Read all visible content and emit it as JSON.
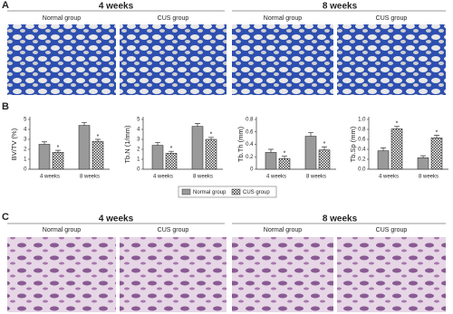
{
  "panels": [
    "A",
    "B",
    "C"
  ],
  "panel_a": {
    "periods": [
      "4 weeks",
      "8 weeks"
    ],
    "groups": [
      "Normal group",
      "CUS group",
      "Normal group",
      "CUS group"
    ]
  },
  "panel_c": {
    "periods": [
      "4 weeks",
      "8 weeks"
    ],
    "groups": [
      "Normal group",
      "CUS group",
      "Normal group",
      "CUS group"
    ]
  },
  "chart_data": [
    {
      "type": "bar",
      "ylabel": "BV/TV (%)",
      "categories": [
        "4 weeks",
        "8 weeks"
      ],
      "ylim": [
        0,
        5
      ],
      "yticks": [
        0,
        1,
        2,
        3,
        4,
        5
      ],
      "series": [
        {
          "name": "Normal group",
          "color": "#9a9a9a",
          "values": [
            2.5,
            4.4
          ],
          "errors": [
            0.25,
            0.3
          ]
        },
        {
          "name": "CUS group",
          "color": "#555555",
          "values": [
            1.7,
            2.8
          ],
          "errors": [
            0.2,
            0.2
          ],
          "annotations": [
            "*",
            "*"
          ]
        }
      ]
    },
    {
      "type": "bar",
      "ylabel": "Tb.N (1/mm)",
      "categories": [
        "4 weeks",
        "8 weeks"
      ],
      "ylim": [
        0,
        5
      ],
      "yticks": [
        0,
        1,
        2,
        3,
        4,
        5
      ],
      "series": [
        {
          "color": "#9a9a9a",
          "values": [
            2.4,
            4.3
          ],
          "errors": [
            0.3,
            0.3
          ]
        },
        {
          "color": "#555555",
          "values": [
            1.6,
            3.0
          ],
          "errors": [
            0.2,
            0.2
          ],
          "annotations": [
            "*",
            "*"
          ]
        }
      ]
    },
    {
      "type": "bar",
      "ylabel": "Tb.Th (mm)",
      "categories": [
        "4 weeks",
        "8 weeks"
      ],
      "ylim": [
        0,
        0.8
      ],
      "yticks": [
        0,
        0.2,
        0.4,
        0.6,
        0.8
      ],
      "series": [
        {
          "color": "#9a9a9a",
          "values": [
            0.27,
            0.53
          ],
          "errors": [
            0.05,
            0.06
          ]
        },
        {
          "color": "#555555",
          "values": [
            0.17,
            0.31
          ],
          "errors": [
            0.04,
            0.05
          ],
          "annotations": [
            "*",
            "*"
          ]
        }
      ]
    },
    {
      "type": "bar",
      "ylabel": "Tb.Sp (mm)",
      "categories": [
        "4 weeks",
        "8 weeks"
      ],
      "ylim": [
        0,
        1
      ],
      "yticks": [
        {
          "value": 0,
          "label": "0.0"
        },
        0.2,
        0.4,
        0.6,
        0.8,
        {
          "value": 1,
          "label": "1.0"
        }
      ],
      "series": [
        {
          "color": "#9a9a9a",
          "values": [
            0.37,
            0.23
          ],
          "errors": [
            0.06,
            0.04
          ]
        },
        {
          "color": "#555555",
          "values": [
            0.81,
            0.63
          ],
          "errors": [
            0.05,
            0.05
          ],
          "annotations": [
            "*",
            "*"
          ]
        }
      ]
    }
  ]
}
